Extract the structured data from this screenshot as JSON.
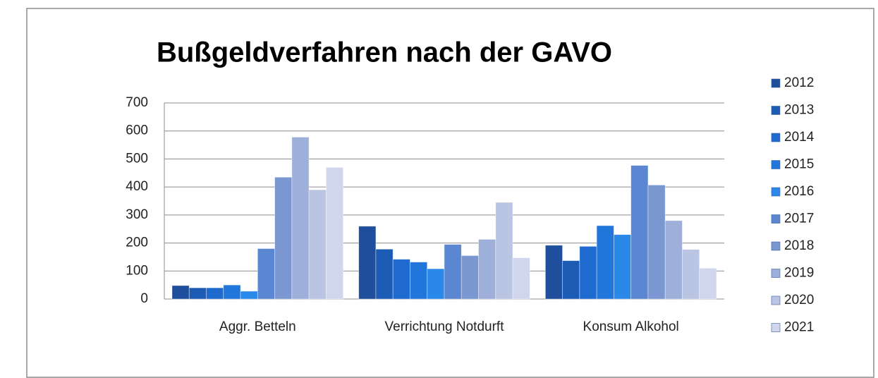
{
  "chart_data": {
    "type": "bar",
    "title": "Bußgeldverfahren nach der GAVO",
    "categories": [
      "Aggr. Betteln",
      "Verrichtung Notdurft",
      "Konsum Alkohol"
    ],
    "series": [
      {
        "name": "2012",
        "color": "#1f4f9c",
        "values": [
          48,
          260,
          192
        ]
      },
      {
        "name": "2013",
        "color": "#1d5cb4",
        "values": [
          40,
          178,
          137
        ]
      },
      {
        "name": "2014",
        "color": "#1e6ace",
        "values": [
          40,
          142,
          188
        ]
      },
      {
        "name": "2015",
        "color": "#2176dc",
        "values": [
          50,
          132,
          262
        ]
      },
      {
        "name": "2016",
        "color": "#2a89e8",
        "values": [
          28,
          108,
          230
        ]
      },
      {
        "name": "2017",
        "color": "#5a86d2",
        "values": [
          180,
          195,
          477
        ]
      },
      {
        "name": "2018",
        "color": "#7b97d2",
        "values": [
          435,
          155,
          407
        ]
      },
      {
        "name": "2019",
        "color": "#9eb0da",
        "values": [
          578,
          213,
          280
        ]
      },
      {
        "name": "2020",
        "color": "#bac4e3",
        "values": [
          390,
          345,
          177
        ]
      },
      {
        "name": "2021",
        "color": "#d0d6ed",
        "values": [
          470,
          147,
          110
        ]
      }
    ],
    "ylim": [
      0,
      700
    ],
    "yticks": [
      0,
      100,
      200,
      300,
      400,
      500,
      600,
      700
    ],
    "grid": true,
    "legend": "right"
  }
}
